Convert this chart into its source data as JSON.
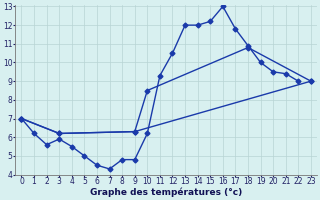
{
  "title": "Graphe des températures (°c)",
  "bg_color": "#d8f0f0",
  "grid_color": "#b8d4d4",
  "line_color": "#1a3aaa",
  "xlim": [
    -0.5,
    23.5
  ],
  "ylim": [
    4,
    13
  ],
  "xticks": [
    0,
    1,
    2,
    3,
    4,
    5,
    6,
    7,
    8,
    9,
    10,
    11,
    12,
    13,
    14,
    15,
    16,
    17,
    18,
    19,
    20,
    21,
    22,
    23
  ],
  "yticks": [
    4,
    5,
    6,
    7,
    8,
    9,
    10,
    11,
    12,
    13
  ],
  "series1_x": [
    0,
    1,
    2,
    3,
    4,
    5,
    6,
    7,
    8,
    9,
    10,
    11,
    12,
    13,
    14,
    15,
    16,
    17,
    18,
    19,
    20,
    21,
    22
  ],
  "series1_y": [
    7.0,
    6.2,
    5.6,
    5.9,
    5.5,
    5.0,
    4.5,
    4.3,
    4.8,
    4.8,
    6.2,
    9.3,
    10.5,
    12.0,
    12.0,
    12.2,
    13.0,
    11.8,
    10.9,
    10.0,
    9.5,
    9.4,
    9.0
  ],
  "series2_x": [
    0,
    3,
    9,
    10,
    18,
    23
  ],
  "series2_y": [
    7.0,
    6.2,
    6.3,
    8.5,
    10.8,
    9.0
  ],
  "series3_x": [
    0,
    3,
    9,
    23
  ],
  "series3_y": [
    7.0,
    6.2,
    6.3,
    9.0
  ],
  "marker": "D",
  "markersize": 2.5,
  "linewidth": 1.0,
  "xlabel_fontsize": 6.5,
  "tick_fontsize": 5.5
}
